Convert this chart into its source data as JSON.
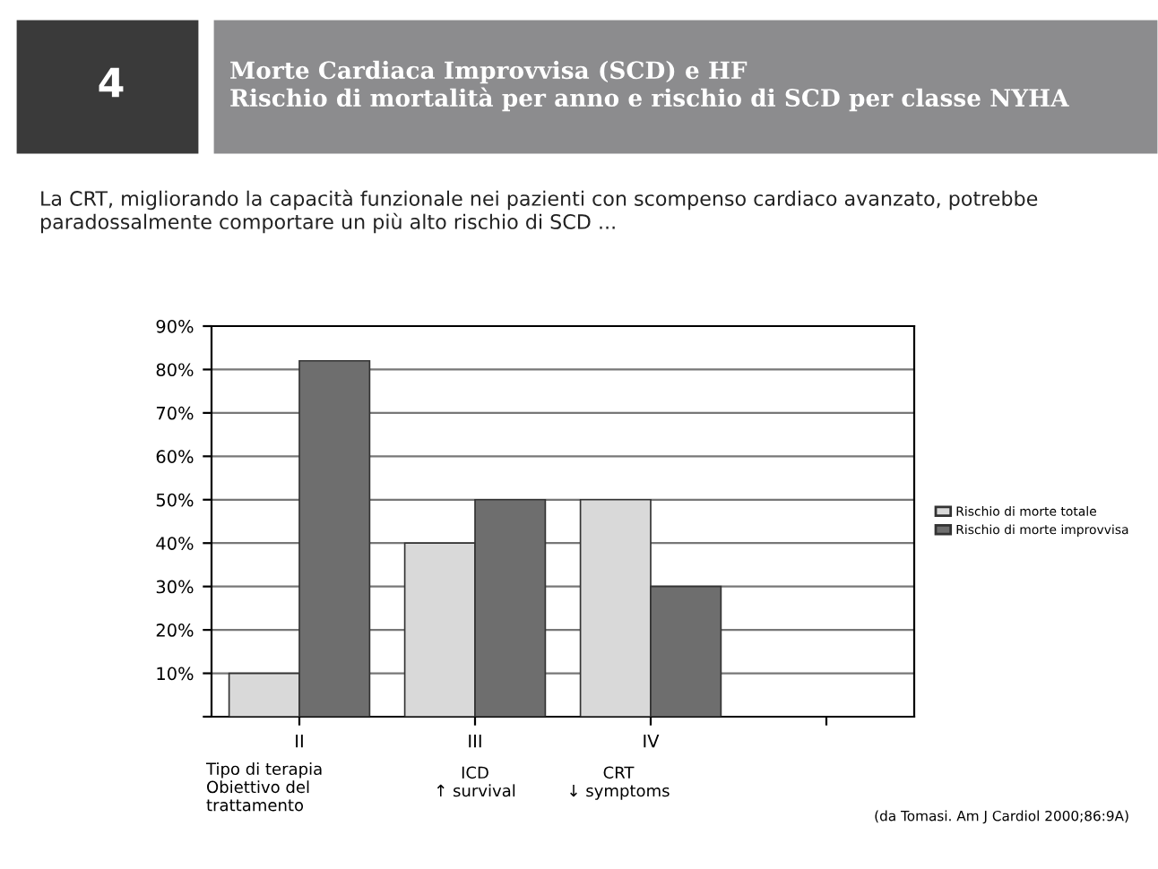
{
  "chart_data": {
    "type": "bar",
    "title": "Morte Cardiaca Improvvisa (SCD) e HF\nRischio di mortalità per anno e rischio di SCD per classe NYHA",
    "subtitle": "La CRT, migliorando la capacità funzionale nei pazienti con scompenso cardiaco avanzato, potrebbe paradossalmente comportare un più alto rischio di SCD ...",
    "categories": [
      "II",
      "III",
      "IV",
      null
    ],
    "series": [
      {
        "name": "Rischio di morte totale",
        "color": "#d9d9d9",
        "values": [
          10,
          40,
          50,
          null
        ]
      },
      {
        "name": "Rischio di morte improvvisa",
        "color": "#6e6e6e",
        "values": [
          82,
          50,
          30,
          null
        ]
      }
    ],
    "ylim": [
      0,
      90
    ],
    "yticks": [
      {
        "value": 0,
        "label": null
      },
      {
        "value": 10,
        "label": "10%"
      },
      {
        "value": 20,
        "label": "20%"
      },
      {
        "value": 30,
        "label": "30%"
      },
      {
        "value": 40,
        "label": "40%"
      },
      {
        "value": 50,
        "label": "50%"
      },
      {
        "value": 60,
        "label": "60%"
      },
      {
        "value": 70,
        "label": "70%"
      },
      {
        "value": 80,
        "label": "80%"
      },
      {
        "value": 90,
        "label": "90%"
      }
    ],
    "grid": "y",
    "legend": "right",
    "annotations": [
      "4",
      "Tipo di terapia\nObiettivo del\ntrattamento",
      "ICD\n↑ survival",
      "CRT\n↓ symptoms",
      "(da Tomasi. Am J Cardiol 2000;86:9A)"
    ]
  }
}
